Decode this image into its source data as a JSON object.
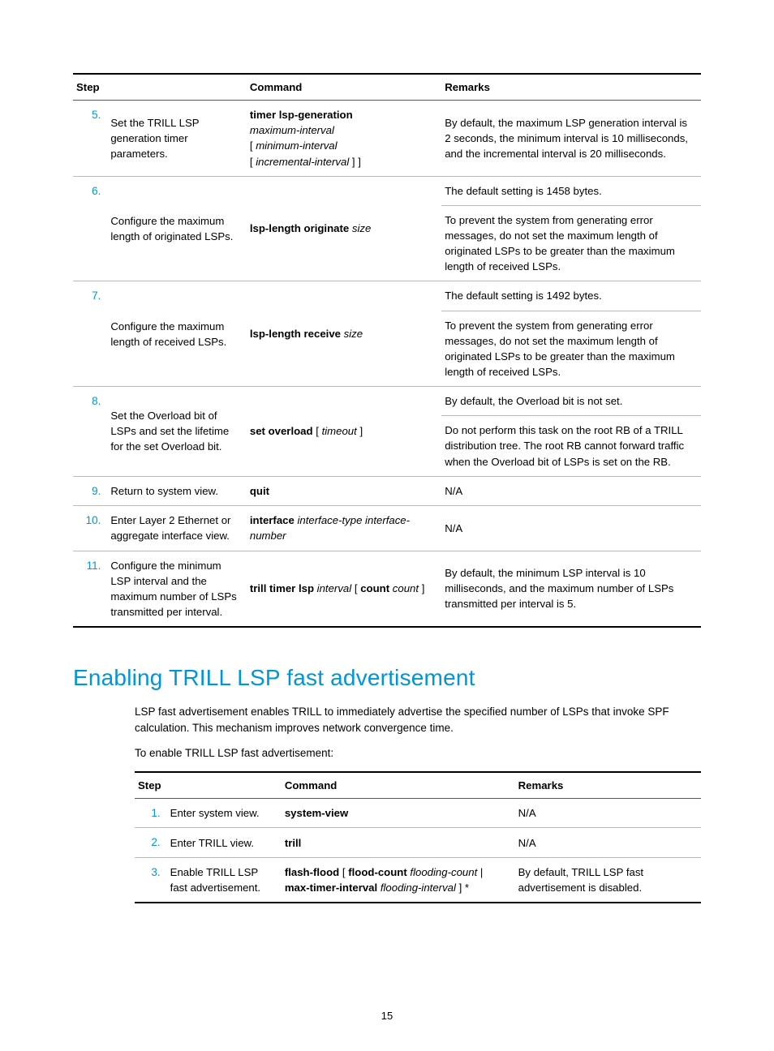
{
  "table1": {
    "headers": {
      "step": "Step",
      "command": "Command",
      "remarks": "Remarks"
    },
    "rows": [
      {
        "num": "5.",
        "desc": "Set the TRILL LSP generation timer parameters.",
        "cmd": [
          {
            "t": "timer lsp-generation",
            "b": true,
            "br": true
          },
          {
            "t": "maximum-interval",
            "i": true,
            "br": true
          },
          {
            "t": "[ ",
            "plain": true
          },
          {
            "t": "minimum-interval",
            "i": true,
            "br": true
          },
          {
            "t": "[ ",
            "plain": true
          },
          {
            "t": "incremental-interval",
            "i": true
          },
          {
            "t": " ] ]",
            "plain": true
          }
        ],
        "remarks": [
          "By default, the maximum LSP generation interval is 2 seconds, the minimum interval is 10 milliseconds, and the incremental interval is 20 milliseconds."
        ]
      },
      {
        "num": "6.",
        "desc": "Configure the maximum length of originated LSPs.",
        "cmd": [
          {
            "t": "lsp-length originate ",
            "b": true
          },
          {
            "t": "size",
            "i": true
          }
        ],
        "remarks": [
          "The default setting is 1458 bytes.",
          "To prevent the system from generating error messages, do not set the maximum length of originated LSPs to be greater than the maximum length of received LSPs."
        ]
      },
      {
        "num": "7.",
        "desc": "Configure the maximum length of received LSPs.",
        "cmd": [
          {
            "t": "lsp-length receive ",
            "b": true
          },
          {
            "t": "size",
            "i": true
          }
        ],
        "remarks": [
          "The default setting is 1492 bytes.",
          "To prevent the system from generating error messages, do not set the maximum length of originated LSPs to be greater than the maximum length of received LSPs."
        ]
      },
      {
        "num": "8.",
        "desc": "Set the Overload bit of LSPs and set the lifetime for the set Overload bit.",
        "cmd": [
          {
            "t": "set overload",
            "b": true
          },
          {
            "t": " [ ",
            "plain": true
          },
          {
            "t": "timeout",
            "i": true
          },
          {
            "t": " ]",
            "plain": true
          }
        ],
        "remarks": [
          "By default, the Overload bit is not set.",
          "Do not perform this task on the root RB of a TRILL distribution tree. The root RB cannot forward traffic when the Overload bit of LSPs is set on the RB."
        ]
      },
      {
        "num": "9.",
        "desc": "Return to system view.",
        "cmd": [
          {
            "t": "quit",
            "b": true
          }
        ],
        "remarks": [
          "N/A"
        ]
      },
      {
        "num": "10.",
        "desc": "Enter Layer 2 Ethernet or aggregate interface view.",
        "cmd": [
          {
            "t": "interface ",
            "b": true
          },
          {
            "t": "interface-type interface-number",
            "i": true
          }
        ],
        "remarks": [
          "N/A"
        ]
      },
      {
        "num": "11.",
        "desc": "Configure the minimum LSP interval and the maximum number of LSPs transmitted per interval.",
        "cmd": [
          {
            "t": "trill timer lsp ",
            "b": true
          },
          {
            "t": "interval",
            "i": true
          },
          {
            "t": " [ ",
            "plain": true
          },
          {
            "t": "count",
            "b": true
          },
          {
            "t": " ",
            "plain": true
          },
          {
            "t": "count",
            "i": true
          },
          {
            "t": " ]",
            "plain": true
          }
        ],
        "remarks": [
          "By default, the minimum LSP interval is 10 milliseconds, and the maximum number of LSPs transmitted per interval is 5."
        ]
      }
    ]
  },
  "section_heading": "Enabling TRILL LSP fast advertisement",
  "paragraphs": [
    "LSP fast advertisement enables TRILL to immediately advertise the specified number of LSPs that invoke SPF calculation. This mechanism improves network convergence time.",
    "To enable TRILL LSP fast advertisement:"
  ],
  "table2": {
    "headers": {
      "step": "Step",
      "command": "Command",
      "remarks": "Remarks"
    },
    "rows": [
      {
        "num": "1.",
        "desc": "Enter system view.",
        "cmd": [
          {
            "t": "system-view",
            "b": true
          }
        ],
        "remarks": [
          "N/A"
        ]
      },
      {
        "num": "2.",
        "desc": "Enter TRILL view.",
        "cmd": [
          {
            "t": "trill",
            "b": true
          }
        ],
        "remarks": [
          "N/A"
        ]
      },
      {
        "num": "3.",
        "desc": "Enable TRILL LSP fast advertisement.",
        "cmd": [
          {
            "t": "flash-flood",
            "b": true
          },
          {
            "t": " [ ",
            "plain": true
          },
          {
            "t": "flood-count ",
            "b": true
          },
          {
            "t": "flooding-count",
            "i": true
          },
          {
            "t": " | ",
            "plain": true
          },
          {
            "t": "max-timer-interval ",
            "b": true
          },
          {
            "t": "flooding-interval",
            "i": true
          },
          {
            "t": " ] *",
            "plain": true
          }
        ],
        "remarks": [
          "By default, TRILL LSP fast advertisement is disabled."
        ]
      }
    ]
  },
  "page_number": "15",
  "colors": {
    "accent": "#0096d6",
    "text": "#000000",
    "rule_heavy": "#000000",
    "rule_light": "#bbbbbb",
    "background": "#ffffff"
  },
  "typography": {
    "body_font": "Arial",
    "body_size_pt": 10,
    "heading_size_pt": 21,
    "heading_weight": 400
  }
}
